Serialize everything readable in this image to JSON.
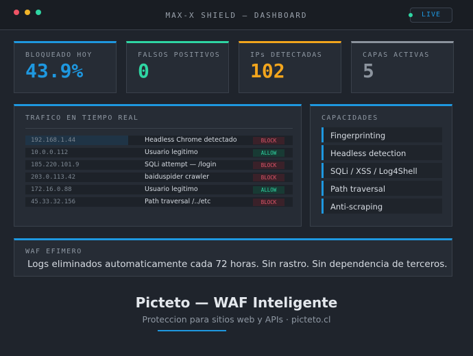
{
  "header": {
    "title": "MAX-X SHIELD — DASHBOARD",
    "status": "LIVE"
  },
  "stats": [
    {
      "label": "BLOQUEADO HOY",
      "value": "43.9%",
      "color": "#1e98e0"
    },
    {
      "label": "FALSOS POSITIVOS",
      "value": "0",
      "color": "#2fd6a3"
    },
    {
      "label": "IPs DETECTADAS",
      "value": "102",
      "color": "#f2a51d"
    },
    {
      "label": "CAPAS ACTIVAS",
      "value": "5",
      "color": "#8c949e"
    }
  ],
  "traffic": {
    "title": "TRAFICO EN TIEMPO REAL",
    "rows": [
      [
        "192.168.1.44",
        "Headless Chrome detectado",
        "BLOCK"
      ],
      [
        "10.0.0.112",
        "Usuario legitimo",
        "ALLOW"
      ],
      [
        "185.220.101.9",
        "SQLi attempt — /login",
        "BLOCK"
      ],
      [
        "203.0.113.42",
        "baiduspider crawler",
        "BLOCK"
      ],
      [
        "172.16.0.88",
        "Usuario legitimo",
        "ALLOW"
      ],
      [
        "45.33.32.156",
        "Path traversal /../etc",
        "BLOCK"
      ]
    ]
  },
  "capabilities": {
    "title": "CAPACIDADES",
    "items": [
      "Fingerprinting",
      "Headless detection",
      "SQLi / XSS / Log4Shell",
      "Path traversal",
      "Anti-scraping"
    ]
  },
  "waf": {
    "title": "WAF EFIMERO",
    "text": "Logs eliminados automaticamente cada 72 horas. Sin rastro. Sin dependencia de terceros."
  },
  "footer": {
    "title": "Picteto — WAF Inteligente",
    "subtitle": "Proteccion para sitios web y APIs · picteto.cl"
  }
}
